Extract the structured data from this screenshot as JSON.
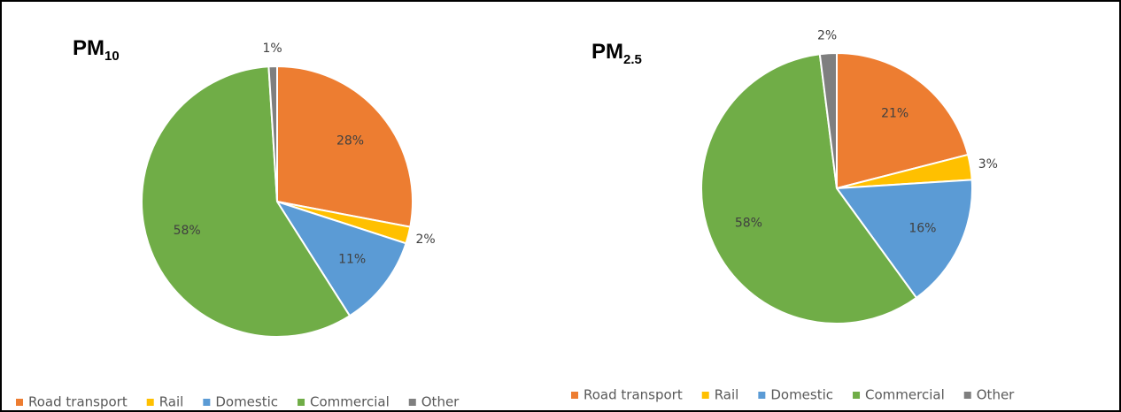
{
  "chart_data": [
    {
      "type": "pie",
      "title": {
        "text": "PM",
        "subscript": "10"
      },
      "categories": [
        "Road transport",
        "Rail",
        "Domestic",
        "Commercial",
        "Other"
      ],
      "values": [
        28,
        2,
        11,
        58,
        1
      ],
      "value_labels": [
        "28%",
        "2%",
        "11%",
        "58%",
        "1%"
      ],
      "colors": [
        "#ed7d31",
        "#ffc000",
        "#5b9bd5",
        "#70ad47",
        "#7f7f7f"
      ],
      "legend": "bottom"
    },
    {
      "type": "pie",
      "title": {
        "text": "PM",
        "subscript": "2.5"
      },
      "categories": [
        "Road transport",
        "Rail",
        "Domestic",
        "Commercial",
        "Other"
      ],
      "values": [
        21,
        3,
        16,
        58,
        2
      ],
      "value_labels": [
        "21%",
        "3%",
        "16%",
        "58%",
        "2%"
      ],
      "colors": [
        "#ed7d31",
        "#ffc000",
        "#5b9bd5",
        "#70ad47",
        "#7f7f7f"
      ],
      "legend": "bottom"
    }
  ]
}
